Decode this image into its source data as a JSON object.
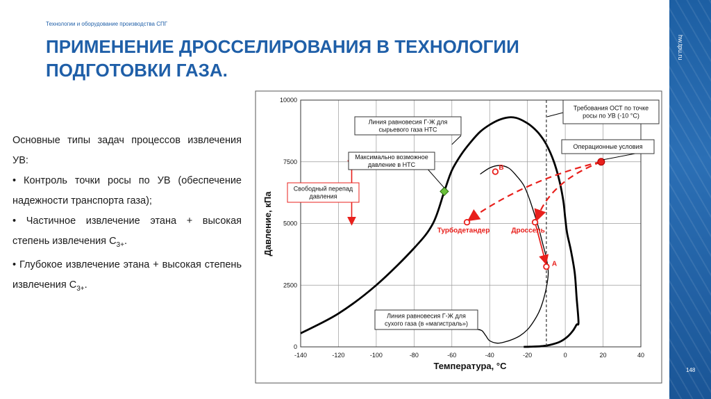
{
  "header": {
    "subtitle": "Технологии и оборудование производства СПГ",
    "title_line1": "ПРИМЕНЕНИЕ ДРОССЕЛИРОВАНИЯ В ТЕХНОЛОГИИ",
    "title_line2": "ПОДГОТОВКИ ГАЗА."
  },
  "sidebar": {
    "url": "hw.tpu.ru",
    "page_number": "148"
  },
  "body": {
    "line1": "Основные типы задач процессов извлечения УВ:",
    "bullet1": "• Контроль точки росы по УВ (обеспечение надежности транспорта газа);",
    "bullet2_text": "• Частичное извлечение этана + высокая степень извлечения C",
    "bullet2_sub": "3+",
    "bullet2_end": ".",
    "bullet3_text": "• Глубокое извлечение этана + высокая степень извлечения C",
    "bullet3_sub": "3+",
    "bullet3_end": "."
  },
  "colors": {
    "accent": "#1f5fa8",
    "red": "#e8201c",
    "green": "#6abf3a"
  },
  "chart_data": {
    "type": "line",
    "xlabel": "Температура, °C",
    "ylabel": "Давление, кПа",
    "xlim": [
      -140,
      40
    ],
    "ylim": [
      0,
      10000
    ],
    "x_ticks": [
      -140,
      -120,
      -100,
      -80,
      -60,
      -40,
      -20,
      0,
      20,
      40
    ],
    "y_ticks": [
      0,
      2500,
      5000,
      7500,
      10000
    ],
    "grid": true,
    "series": [
      {
        "name": "Линия равновесия Г-Ж для сырьевого газа НТС",
        "x": [
          -140,
          -120,
          -100,
          -80,
          -70,
          -64,
          -60,
          -55,
          -50,
          -45,
          -40,
          -35,
          -30,
          -26,
          -22,
          -18,
          -14,
          -10,
          -6,
          -3,
          -1,
          0,
          1,
          3,
          5,
          6,
          7,
          6,
          4,
          1,
          -3,
          -8,
          -12,
          -17,
          -22
        ],
        "y": [
          550,
          1350,
          2500,
          4000,
          5000,
          6300,
          7150,
          7800,
          8300,
          8720,
          9000,
          9200,
          9300,
          9280,
          9150,
          8950,
          8650,
          8200,
          7500,
          6700,
          5900,
          5200,
          4600,
          3900,
          3000,
          2000,
          1000,
          900,
          650,
          400,
          200,
          80,
          30,
          10,
          0
        ]
      },
      {
        "name": "Линия равновесия Г-Ж для сухого газа (в «магистраль»)",
        "x": [
          -45,
          -40,
          -35,
          -30,
          -26,
          -22,
          -19,
          -16,
          -14,
          -12,
          -10,
          -9,
          -10,
          -12,
          -14,
          -17,
          -20,
          -24,
          -28,
          -32,
          -36,
          -40,
          -42,
          -44,
          -46
        ],
        "y": [
          7000,
          7250,
          7350,
          7250,
          6950,
          6550,
          6000,
          5300,
          4800,
          4200,
          3600,
          3000,
          2400,
          1800,
          1400,
          1000,
          700,
          450,
          300,
          200,
          150,
          250,
          450,
          650,
          700
        ]
      }
    ],
    "dew_point_requirement_x": -10,
    "points": [
      {
        "label": "B",
        "x": -37,
        "y": 7100
      },
      {
        "label": "A",
        "x": -10,
        "y": 3250
      },
      {
        "label": "Турбодетандер",
        "x": -52,
        "y": 5050
      },
      {
        "label": "Дроссель",
        "x": -16,
        "y": 5050
      },
      {
        "label": "Операционные условия",
        "x": 19,
        "y": 7500
      },
      {
        "label": "",
        "x": -64,
        "y": 6300
      }
    ],
    "annotations": {
      "raw_gas_line": [
        "Линия равновесия Г-Ж для",
        "сырьевого газа НТС"
      ],
      "max_pressure": [
        "Максимально возможное",
        "давление в НТС"
      ],
      "free_drop": [
        "Свободный перепад",
        "давления"
      ],
      "dry_gas_line": [
        "Линия равновесия Г-Ж для",
        "сухого газа (в «магистраль»)"
      ],
      "ost_requirement": [
        "Требования ОСТ по точке",
        "росы по УВ (-10 °С)"
      ],
      "operating": "Операционные условия",
      "label_b": "B",
      "label_a": "A",
      "label_turbo": "Турбодетандер",
      "label_throttle": "Дроссель"
    }
  }
}
